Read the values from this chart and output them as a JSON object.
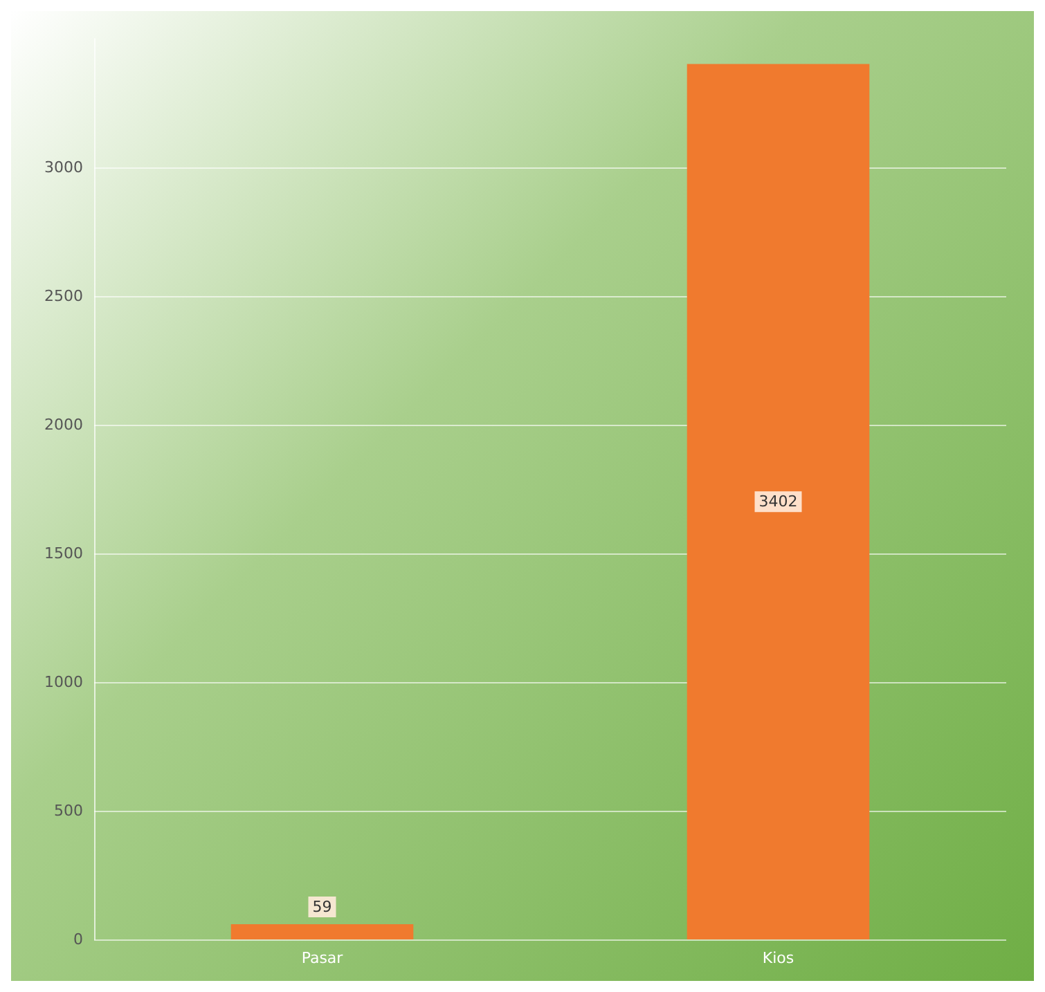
{
  "chart_data": {
    "type": "bar",
    "categories": [
      "Pasar",
      "Kios"
    ],
    "values": [
      59,
      3402
    ],
    "color": "#f07a2e",
    "ylim": [
      0,
      3500
    ],
    "yticks": [
      0,
      500,
      1000,
      1500,
      2000,
      2500,
      3000
    ],
    "grid": "y",
    "data_labels": true
  }
}
